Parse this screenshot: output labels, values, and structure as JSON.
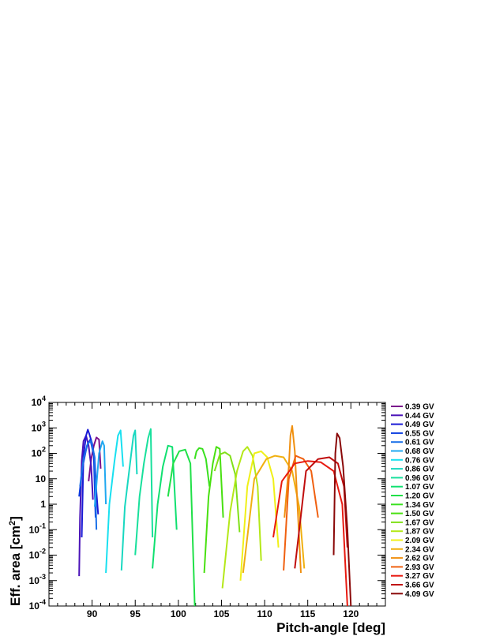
{
  "chart_data": {
    "type": "line",
    "title": "",
    "xlabel": "Pitch-angle [deg]",
    "ylabel_main": "Eff. area [cm",
    "ylabel_sup": "2",
    "ylabel_end": "]",
    "xlim": [
      85,
      124
    ],
    "ylim": [
      0.0001,
      10000
    ],
    "yscale": "log",
    "grid": false,
    "legend_position": "right",
    "x_ticks": [
      {
        "value": 90,
        "label": "90"
      },
      {
        "value": 95,
        "label": "95"
      },
      {
        "value": 100,
        "label": "100"
      },
      {
        "value": 105,
        "label": "105"
      },
      {
        "value": 110,
        "label": "110"
      },
      {
        "value": 115,
        "label": "115"
      },
      {
        "value": 120,
        "label": "120"
      }
    ],
    "y_ticks": [
      {
        "value": 0.0001,
        "base": "10",
        "exp": "-4",
        "label": ""
      },
      {
        "value": 0.001,
        "base": "10",
        "exp": "-3",
        "label": ""
      },
      {
        "value": 0.01,
        "base": "10",
        "exp": "-2",
        "label": ""
      },
      {
        "value": 0.1,
        "base": "10",
        "exp": "-1",
        "label": ""
      },
      {
        "value": 1,
        "base": "",
        "exp": "",
        "label": "1"
      },
      {
        "value": 10,
        "base": "",
        "exp": "",
        "label": "10"
      },
      {
        "value": 100,
        "base": "10",
        "exp": "2",
        "label": ""
      },
      {
        "value": 1000,
        "base": "10",
        "exp": "3",
        "label": ""
      },
      {
        "value": 10000,
        "base": "10",
        "exp": "4",
        "label": ""
      }
    ],
    "series": [
      {
        "name": "0.39 GV",
        "color": "#7b0e8c",
        "x": [
          89.6,
          89.9,
          90.2,
          90.5,
          90.8,
          91.0
        ],
        "y": [
          8,
          60,
          200,
          420,
          350,
          25
        ]
      },
      {
        "name": "0.44 GV",
        "color": "#4a12b8",
        "x": [
          88.5,
          88.6,
          88.8,
          89.0,
          89.3,
          89.6,
          89.9,
          90.1
        ],
        "y": [
          0.0015,
          0.3,
          50,
          300,
          500,
          200,
          30,
          1.5
        ]
      },
      {
        "name": "0.49 GV",
        "color": "#1a1ad6",
        "x": [
          88.8,
          89.0,
          89.3,
          89.5,
          89.7,
          90.0,
          90.3,
          90.5,
          90.7
        ],
        "y": [
          0.05,
          80,
          500,
          850,
          550,
          250,
          60,
          3,
          0.4
        ]
      },
      {
        "name": "0.55 GV",
        "color": "#0b3ce0",
        "x": [
          88.5,
          88.9,
          89.4,
          89.8,
          90.2,
          90.4
        ],
        "y": [
          2,
          30,
          200,
          350,
          80,
          0.3
        ]
      },
      {
        "name": "0.61 GV",
        "color": "#1a70e8",
        "x": [
          88.6,
          89.0,
          89.5,
          89.9,
          90.3,
          90.5
        ],
        "y": [
          5,
          60,
          250,
          300,
          70,
          0.1
        ]
      },
      {
        "name": "0.68 GV",
        "color": "#20a8f0",
        "x": [
          90.3,
          90.8,
          91.2,
          91.4,
          91.6
        ],
        "y": [
          0.8,
          100,
          300,
          200,
          1
        ]
      },
      {
        "name": "0.76 GV",
        "color": "#18e0f0",
        "x": [
          91.6,
          92.0,
          92.6,
          93.0,
          93.3,
          93.6
        ],
        "y": [
          0.002,
          1,
          50,
          500,
          800,
          30
        ]
      },
      {
        "name": "0.86 GV",
        "color": "#18d8c0",
        "x": [
          93.4,
          93.8,
          94.4,
          94.8,
          95.0,
          95.2
        ],
        "y": [
          0.0025,
          0.8,
          40,
          500,
          800,
          15
        ]
      },
      {
        "name": "0.96 GV",
        "color": "#18e09c",
        "x": [
          95.0,
          95.5,
          96.0,
          96.5,
          96.8,
          97.0
        ],
        "y": [
          0.01,
          2,
          40,
          400,
          900,
          0.05
        ]
      },
      {
        "name": "1.07 GV",
        "color": "#10e070",
        "x": [
          97.0,
          97.6,
          98.2,
          98.8,
          99.3,
          99.8
        ],
        "y": [
          0.003,
          1,
          30,
          200,
          180,
          0.1
        ]
      },
      {
        "name": "1.20 GV",
        "color": "#20e048",
        "x": [
          98.8,
          99.4,
          100.1,
          100.8,
          101.4,
          101.9
        ],
        "y": [
          2,
          40,
          120,
          140,
          40,
          0.0001
        ]
      },
      {
        "name": "1.34 GV",
        "color": "#3ae020",
        "x": [
          101.9,
          102.1,
          102.4,
          102.8,
          103.2,
          103.6
        ],
        "y": [
          60,
          120,
          160,
          150,
          60,
          5
        ]
      },
      {
        "name": "1.50 GV",
        "color": "#48e010",
        "x": [
          103.0,
          103.5,
          104.0,
          104.4,
          104.8,
          105.2
        ],
        "y": [
          0.002,
          2,
          40,
          180,
          150,
          0.3
        ]
      },
      {
        "name": "1.67 GV",
        "color": "#80e018",
        "x": [
          104.2,
          104.8,
          105.4,
          106.0,
          106.6,
          107.1
        ],
        "y": [
          20,
          90,
          110,
          80,
          15,
          0.08
        ]
      },
      {
        "name": "1.87 GV",
        "color": "#b4e818",
        "x": [
          105.1,
          106.0,
          106.8,
          107.5,
          108.0,
          108.6,
          109.2,
          109.6
        ],
        "y": [
          0.0005,
          0.5,
          20,
          120,
          180,
          80,
          5,
          0.006
        ]
      },
      {
        "name": "2.09 GV",
        "color": "#f0f018",
        "x": [
          107.2,
          108.0,
          108.8,
          109.6,
          110.3,
          111.0,
          111.6
        ],
        "y": [
          0.001,
          5,
          100,
          120,
          70,
          10,
          0.02
        ]
      },
      {
        "name": "2.34 GV",
        "color": "#f0b010",
        "x": [
          107.5,
          108.8,
          110.2,
          111.2,
          112.2,
          113.2,
          114.0,
          114.6
        ],
        "y": [
          0.002,
          10,
          60,
          80,
          70,
          20,
          0.8,
          0.003
        ]
      },
      {
        "name": "2.62 GV",
        "color": "#f09010",
        "x": [
          112.3,
          112.8,
          113.0,
          113.2,
          113.5,
          114.2
        ],
        "y": [
          0.3,
          30,
          500,
          1200,
          120,
          0.002
        ]
      },
      {
        "name": "2.93 GV",
        "color": "#f06010",
        "x": [
          112.2,
          112.8,
          113.6,
          114.5,
          115.4,
          116.2
        ],
        "y": [
          0.0025,
          10,
          80,
          60,
          20,
          0.3
        ]
      },
      {
        "name": "3.27 GV",
        "color": "#e81a10",
        "x": [
          111.0,
          112.0,
          113.5,
          115.0,
          116.5,
          118.0,
          119.0,
          119.6
        ],
        "y": [
          0.05,
          8,
          40,
          50,
          45,
          20,
          1,
          0.0001
        ]
      },
      {
        "name": "3.66 GV",
        "color": "#c00d0d",
        "x": [
          113.5,
          114.8,
          116.2,
          117.5,
          118.5,
          119.2,
          119.6
        ],
        "y": [
          0.003,
          20,
          60,
          70,
          40,
          5,
          0.02
        ]
      },
      {
        "name": "4.09 GV",
        "color": "#8a0808",
        "x": [
          118.0,
          118.2,
          118.4,
          118.7,
          119.1,
          119.6,
          120.0
        ],
        "y": [
          0.01,
          100,
          600,
          400,
          30,
          0.1,
          0.0001
        ]
      }
    ]
  }
}
